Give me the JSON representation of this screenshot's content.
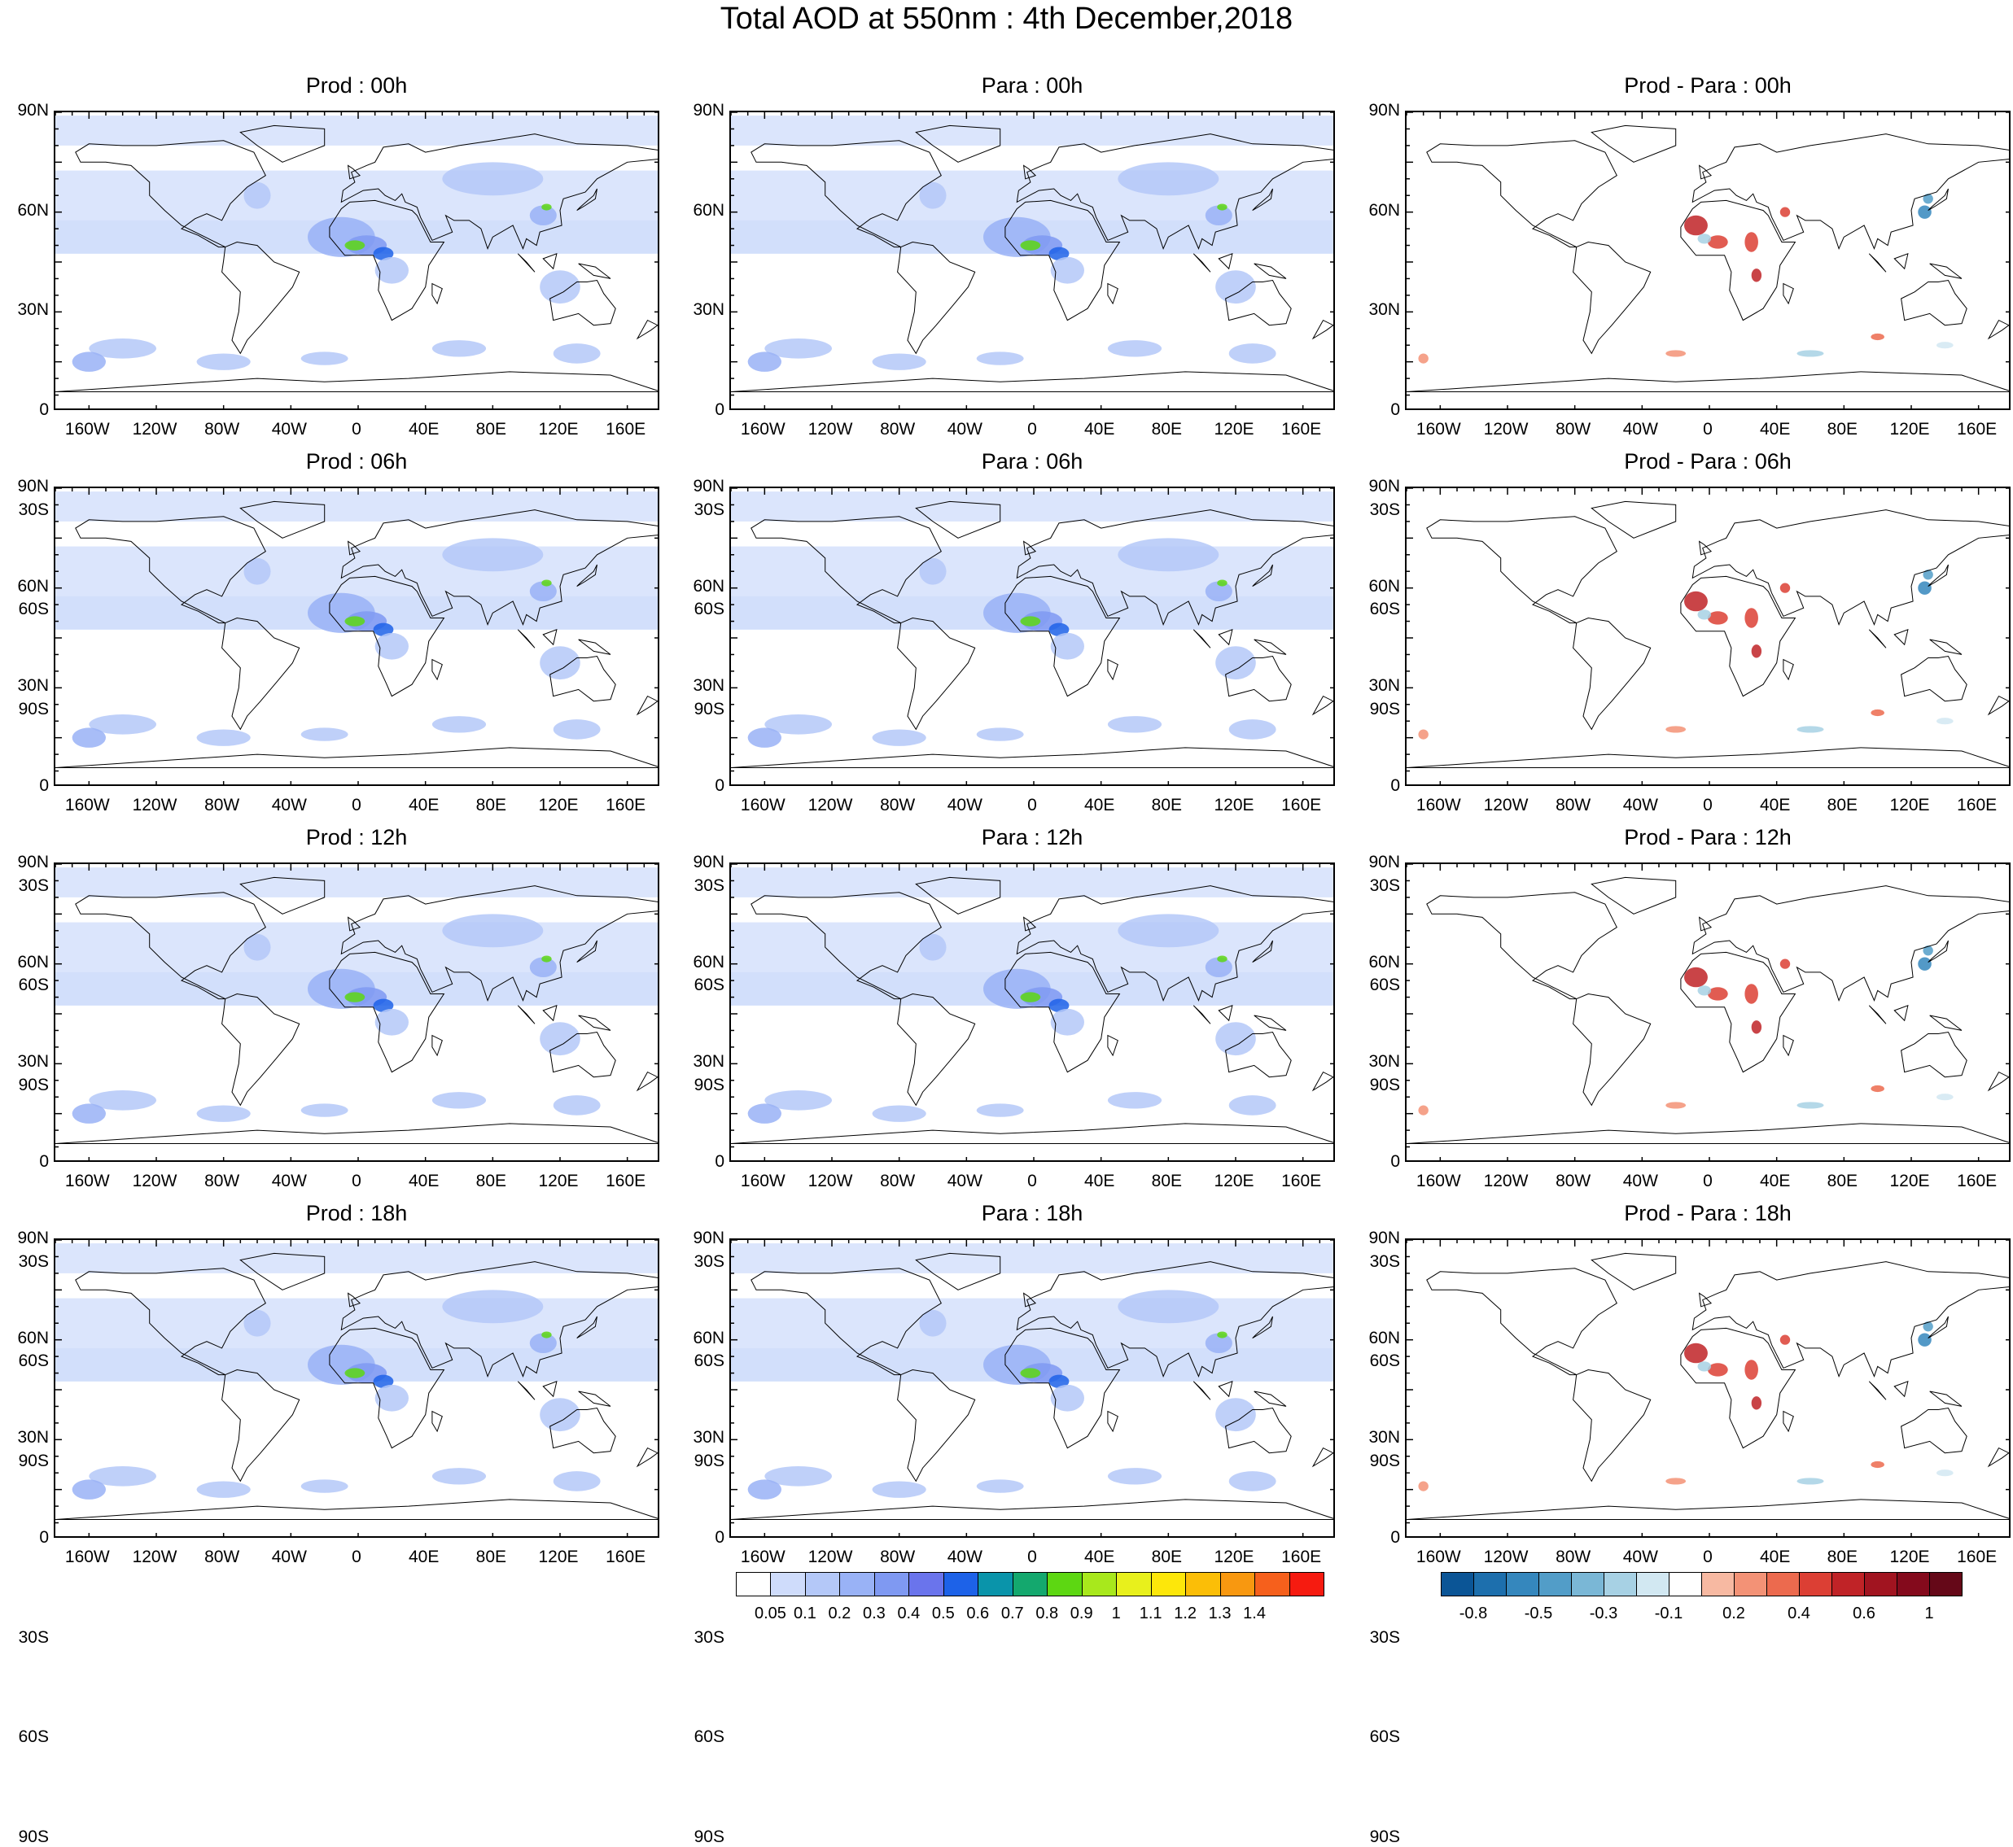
{
  "title": "Total AOD at 550nm : 4th December,2018",
  "lat_labels": [
    "90N",
    "60N",
    "30N",
    "0",
    "30S",
    "60S",
    "90S"
  ],
  "lon_labels": [
    "160W",
    "120W",
    "80W",
    "40W",
    "0",
    "40E",
    "80E",
    "120E",
    "160E"
  ],
  "panels": [
    {
      "title": "Prod : 00h",
      "kind": "aod",
      "step": "00h"
    },
    {
      "title": "Para : 00h",
      "kind": "aod",
      "step": "00h"
    },
    {
      "title": "Prod - Para : 00h",
      "kind": "diff",
      "step": "00h"
    },
    {
      "title": "Prod : 06h",
      "kind": "aod",
      "step": "06h"
    },
    {
      "title": "Para : 06h",
      "kind": "aod",
      "step": "06h"
    },
    {
      "title": "Prod - Para : 06h",
      "kind": "diff",
      "step": "06h"
    },
    {
      "title": "Prod : 12h",
      "kind": "aod",
      "step": "12h"
    },
    {
      "title": "Para : 12h",
      "kind": "aod",
      "step": "12h"
    },
    {
      "title": "Prod - Para : 12h",
      "kind": "diff",
      "step": "12h"
    },
    {
      "title": "Prod : 18h",
      "kind": "aod",
      "step": "18h"
    },
    {
      "title": "Para : 18h",
      "kind": "aod",
      "step": "18h"
    },
    {
      "title": "Prod - Para : 18h",
      "kind": "diff",
      "step": "18h"
    }
  ],
  "aod_colorbar": {
    "labels": [
      "0.05",
      "0.1",
      "0.2",
      "0.3",
      "0.4",
      "0.5",
      "0.6",
      "0.7",
      "0.8",
      "0.9",
      "1",
      "1.1",
      "1.2",
      "1.3",
      "1.4"
    ],
    "colors": [
      "#ffffff",
      "#cfdcfb",
      "#b4c8f8",
      "#99b2f6",
      "#7f99f2",
      "#6a74ec",
      "#1d62e8",
      "#0a94aa",
      "#14a86e",
      "#5dd712",
      "#a8e81c",
      "#e8f01c",
      "#fde70a",
      "#fbbe07",
      "#f89810",
      "#f6601c",
      "#f61b10"
    ]
  },
  "diff_colorbar": {
    "labels": [
      "-0.8",
      "-0.5",
      "-0.3",
      "-0.1",
      "0.2",
      "0.4",
      "0.6",
      "1"
    ],
    "colors": [
      "#0b5596",
      "#1d6fad",
      "#3587bd",
      "#529dc8",
      "#7ab7d6",
      "#a7d1e4",
      "#d2e8f2",
      "#ffffff",
      "#f7b9a2",
      "#f39276",
      "#ec6a4e",
      "#dc3f34",
      "#c02327",
      "#a11420",
      "#840a1c",
      "#650818"
    ]
  },
  "colors": {
    "land_line": "#000000",
    "frame": "#000000"
  }
}
